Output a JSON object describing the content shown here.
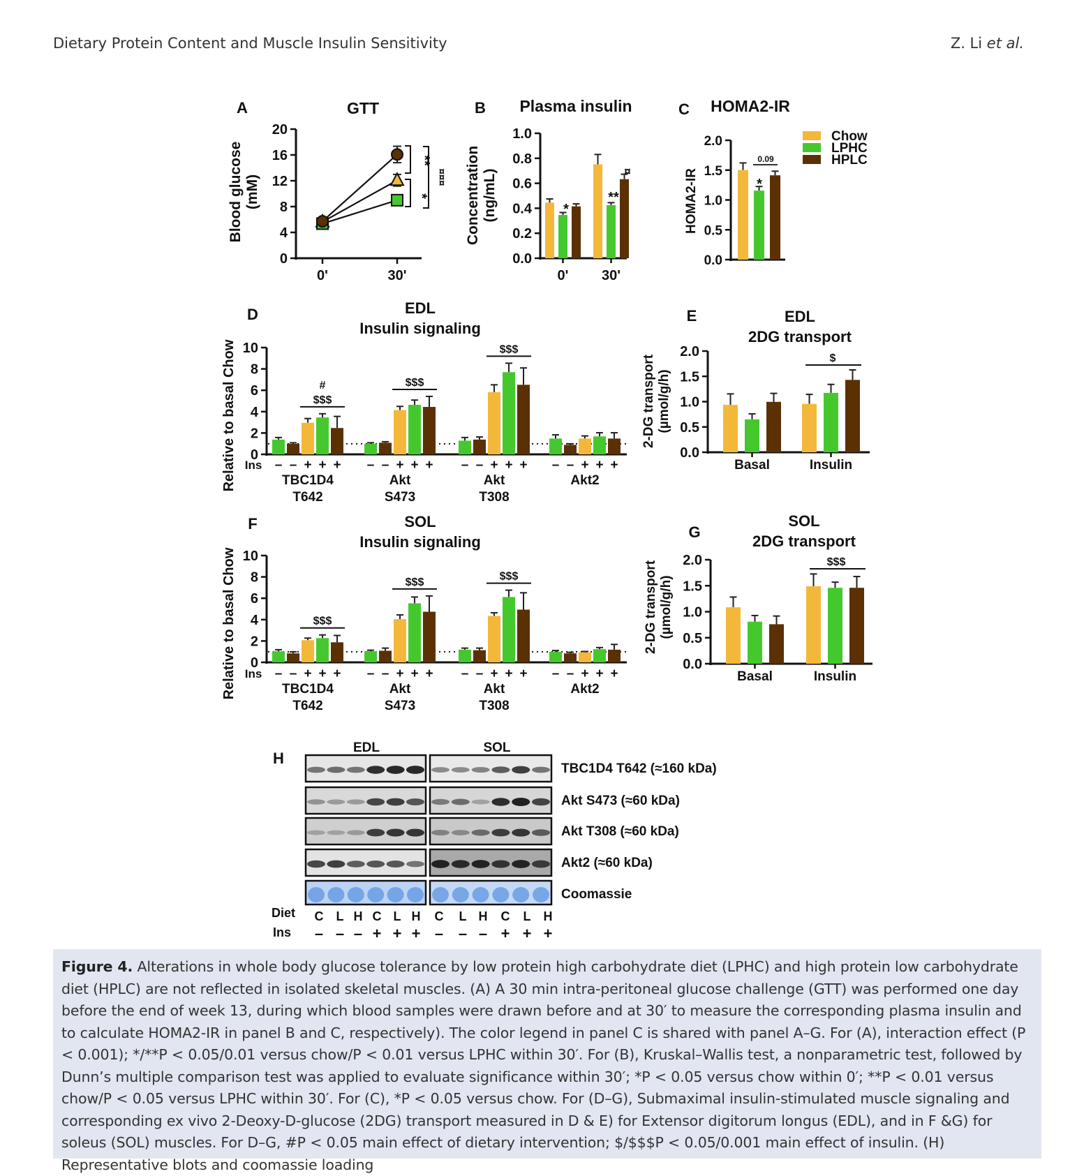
{
  "header": {
    "running_title": "Dietary Protein Content and Muscle Insulin Sensitivity",
    "author": "Z. Li",
    "author_suffix": "et al."
  },
  "colors": {
    "Chow": "#f3b83a",
    "LPHC": "#45c82e",
    "HPLC": "#5b3003",
    "axis": "#111111"
  },
  "legend": [
    "Chow",
    "LPHC",
    "HPLC"
  ],
  "chart_data": [
    {
      "panel": "A",
      "type": "line",
      "title": "GTT",
      "ylabel": "Blood glucose\n(mM)",
      "xlabel": "",
      "categories": [
        "0'",
        "30'"
      ],
      "ylim": [
        0,
        20
      ],
      "yticks": [
        0,
        4,
        8,
        12,
        16,
        20
      ],
      "series": [
        {
          "name": "Chow",
          "marker": "triangle",
          "values": [
            6.2,
            13.3
          ],
          "err": [
            0.4,
            1.0
          ]
        },
        {
          "name": "LPHC",
          "marker": "square",
          "values": [
            5.9,
            9.9
          ],
          "err": [
            0.3,
            0.6
          ]
        },
        {
          "name": "HPLC",
          "marker": "circle",
          "values": [
            6.3,
            17.7
          ],
          "err": [
            0.4,
            1.4
          ]
        }
      ],
      "annotations": [
        "**",
        "*",
        "¤¤¤"
      ]
    },
    {
      "panel": "B",
      "type": "bar",
      "title": "Plasma insulin",
      "ylabel": "Concentration\n(ng/mL)",
      "categories": [
        "0'",
        "30'"
      ],
      "ylim": [
        0,
        1.0
      ],
      "yticks": [
        0.0,
        0.2,
        0.4,
        0.6,
        0.8,
        1.0
      ],
      "series": [
        {
          "name": "Chow",
          "values": [
            0.45,
            0.76
          ],
          "err": [
            0.03,
            0.08
          ]
        },
        {
          "name": "LPHC",
          "values": [
            0.35,
            0.43
          ],
          "err": [
            0.02,
            0.02
          ]
        },
        {
          "name": "HPLC",
          "values": [
            0.42,
            0.64
          ],
          "err": [
            0.02,
            0.04
          ]
        }
      ],
      "annotations": [
        {
          "cat": 0,
          "series": "LPHC",
          "text": "*"
        },
        {
          "cat": 1,
          "series": "LPHC",
          "text": "**"
        },
        {
          "cat": 1,
          "series": "HPLC",
          "text": "¤"
        }
      ]
    },
    {
      "panel": "C",
      "type": "bar",
      "title": "HOMA2-IR",
      "ylabel": "HOMA2-IR",
      "categories": [
        ""
      ],
      "ylim": [
        0,
        2.0
      ],
      "yticks": [
        0.0,
        0.5,
        1.0,
        1.5,
        2.0
      ],
      "series": [
        {
          "name": "Chow",
          "values": [
            1.52
          ],
          "err": [
            0.12
          ]
        },
        {
          "name": "LPHC",
          "values": [
            1.17
          ],
          "err": [
            0.07
          ]
        },
        {
          "name": "HPLC",
          "values": [
            1.43
          ],
          "err": [
            0.07
          ]
        }
      ],
      "annotations": [
        {
          "series": "LPHC",
          "text": "*"
        },
        {
          "bracket": [
            "LPHC",
            "HPLC"
          ],
          "text": "0.09"
        }
      ]
    },
    {
      "panel": "D",
      "type": "bar",
      "title": "EDL\nInsulin signaling",
      "ylabel": "Relative to basal Chow",
      "ylim": [
        0,
        10
      ],
      "yticks": [
        0,
        2,
        4,
        6,
        8,
        10
      ],
      "reference_line": 1,
      "ins_row_label": "Ins",
      "groups": [
        {
          "label": [
            "TBC1D4",
            "T642"
          ],
          "bars": [
            {
              "diet": "LPHC",
              "ins": "-",
              "value": 1.4,
              "err": 0.2
            },
            {
              "diet": "HPLC",
              "ins": "-",
              "value": 1.0,
              "err": 0.1
            },
            {
              "diet": "Chow",
              "ins": "+",
              "value": 3.0,
              "err": 0.4
            },
            {
              "diet": "LPHC",
              "ins": "+",
              "value": 3.5,
              "err": 0.35
            },
            {
              "diet": "HPLC",
              "ins": "+",
              "value": 2.5,
              "err": 1.1
            }
          ],
          "sig": [
            "#",
            "$$$"
          ]
        },
        {
          "label": [
            "Akt",
            "S473"
          ],
          "bars": [
            {
              "diet": "LPHC",
              "ins": "-",
              "value": 1.0,
              "err": 0.1
            },
            {
              "diet": "HPLC",
              "ins": "-",
              "value": 1.1,
              "err": 0.1
            },
            {
              "diet": "Chow",
              "ins": "+",
              "value": 4.2,
              "err": 0.35
            },
            {
              "diet": "LPHC",
              "ins": "+",
              "value": 4.7,
              "err": 0.45
            },
            {
              "diet": "HPLC",
              "ins": "+",
              "value": 4.5,
              "err": 1.0
            }
          ],
          "sig": [
            "$$$"
          ]
        },
        {
          "label": [
            "Akt",
            "T308"
          ],
          "bars": [
            {
              "diet": "LPHC",
              "ins": "-",
              "value": 1.3,
              "err": 0.3
            },
            {
              "diet": "HPLC",
              "ins": "-",
              "value": 1.4,
              "err": 0.25
            },
            {
              "diet": "Chow",
              "ins": "+",
              "value": 5.9,
              "err": 0.7
            },
            {
              "diet": "LPHC",
              "ins": "+",
              "value": 7.8,
              "err": 0.85
            },
            {
              "diet": "HPLC",
              "ins": "+",
              "value": 6.6,
              "err": 1.6
            }
          ],
          "sig": [
            "$$$"
          ]
        },
        {
          "label": [
            "Akt2",
            ""
          ],
          "bars": [
            {
              "diet": "LPHC",
              "ins": "-",
              "value": 1.5,
              "err": 0.35
            },
            {
              "diet": "HPLC",
              "ins": "-",
              "value": 0.9,
              "err": 0.1
            },
            {
              "diet": "Chow",
              "ins": "+",
              "value": 1.5,
              "err": 0.25
            },
            {
              "diet": "LPHC",
              "ins": "+",
              "value": 1.7,
              "err": 0.35
            },
            {
              "diet": "HPLC",
              "ins": "+",
              "value": 1.5,
              "err": 0.55
            }
          ],
          "sig": []
        }
      ]
    },
    {
      "panel": "E",
      "type": "bar",
      "title": "EDL\n2DG transport",
      "ylabel": "2-DG transport\n(µmol/g/h)",
      "categories": [
        "Basal",
        "Insulin"
      ],
      "ylim": [
        0,
        2.0
      ],
      "yticks": [
        0.0,
        0.5,
        1.0,
        1.5,
        2.0
      ],
      "series": [
        {
          "name": "Chow",
          "values": [
            0.95,
            0.97
          ],
          "err": [
            0.22,
            0.19
          ]
        },
        {
          "name": "LPHC",
          "values": [
            0.66,
            1.19
          ],
          "err": [
            0.11,
            0.17
          ]
        },
        {
          "name": "HPLC",
          "values": [
            1.01,
            1.45
          ],
          "err": [
            0.17,
            0.2
          ]
        }
      ],
      "sig": [
        {
          "cat": 1,
          "text": "$"
        }
      ]
    },
    {
      "panel": "F",
      "type": "bar",
      "title": "SOL\nInsulin signaling",
      "ylabel": "Relative to basal Chow",
      "ylim": [
        0,
        10
      ],
      "yticks": [
        0,
        2,
        4,
        6,
        8,
        10
      ],
      "reference_line": 1,
      "ins_row_label": "Ins",
      "groups": [
        {
          "label": [
            "TBC1D4",
            "T642"
          ],
          "bars": [
            {
              "diet": "LPHC",
              "ins": "-",
              "value": 1.05,
              "err": 0.15
            },
            {
              "diet": "HPLC",
              "ins": "-",
              "value": 0.85,
              "err": 0.15
            },
            {
              "diet": "Chow",
              "ins": "+",
              "value": 2.1,
              "err": 0.2
            },
            {
              "diet": "LPHC",
              "ins": "+",
              "value": 2.3,
              "err": 0.3
            },
            {
              "diet": "HPLC",
              "ins": "+",
              "value": 1.9,
              "err": 0.65
            }
          ],
          "sig": [
            "$$$"
          ]
        },
        {
          "label": [
            "Akt",
            "S473"
          ],
          "bars": [
            {
              "diet": "LPHC",
              "ins": "-",
              "value": 1.05,
              "err": 0.1
            },
            {
              "diet": "HPLC",
              "ins": "-",
              "value": 1.1,
              "err": 0.25
            },
            {
              "diet": "Chow",
              "ins": "+",
              "value": 4.1,
              "err": 0.4
            },
            {
              "diet": "LPHC",
              "ins": "+",
              "value": 5.6,
              "err": 0.6
            },
            {
              "diet": "HPLC",
              "ins": "+",
              "value": 4.8,
              "err": 1.5
            }
          ],
          "sig": [
            "$$$"
          ]
        },
        {
          "label": [
            "Akt",
            "T308"
          ],
          "bars": [
            {
              "diet": "LPHC",
              "ins": "-",
              "value": 1.2,
              "err": 0.15
            },
            {
              "diet": "HPLC",
              "ins": "-",
              "value": 1.15,
              "err": 0.2
            },
            {
              "diet": "Chow",
              "ins": "+",
              "value": 4.4,
              "err": 0.3
            },
            {
              "diet": "LPHC",
              "ins": "+",
              "value": 6.2,
              "err": 0.65
            },
            {
              "diet": "HPLC",
              "ins": "+",
              "value": 5.0,
              "err": 1.6
            }
          ],
          "sig": [
            "$$$"
          ]
        },
        {
          "label": [
            "Akt2",
            ""
          ],
          "bars": [
            {
              "diet": "LPHC",
              "ins": "-",
              "value": 1.0,
              "err": 0.12
            },
            {
              "diet": "HPLC",
              "ins": "-",
              "value": 0.85,
              "err": 0.1
            },
            {
              "diet": "Chow",
              "ins": "+",
              "value": 0.95,
              "err": 0.08
            },
            {
              "diet": "LPHC",
              "ins": "+",
              "value": 1.25,
              "err": 0.15
            },
            {
              "diet": "HPLC",
              "ins": "+",
              "value": 1.2,
              "err": 0.5
            }
          ],
          "sig": []
        }
      ]
    },
    {
      "panel": "G",
      "type": "bar",
      "title": "SOL\n2DG transport",
      "ylabel": "2-DG transport\n(µmol/g/h)",
      "categories": [
        "Basal",
        "Insulin"
      ],
      "ylim": [
        0,
        2.0
      ],
      "yticks": [
        0.0,
        0.5,
        1.0,
        1.5,
        2.0
      ],
      "series": [
        {
          "name": "Chow",
          "values": [
            1.1,
            1.51
          ],
          "err": [
            0.2,
            0.24
          ]
        },
        {
          "name": "LPHC",
          "values": [
            0.82,
            1.48
          ],
          "err": [
            0.12,
            0.11
          ]
        },
        {
          "name": "HPLC",
          "values": [
            0.77,
            1.48
          ],
          "err": [
            0.16,
            0.22
          ]
        }
      ],
      "sig": [
        {
          "cat": 1,
          "text": "$$$"
        }
      ]
    }
  ],
  "blots": {
    "panel": "H",
    "tissues": [
      "EDL",
      "SOL"
    ],
    "rows": [
      {
        "label": "TBC1D4 T642 (≈160 kDa)",
        "bg": [
          "#e6e6e6",
          "#e9e9e9"
        ],
        "edl": [
          0.45,
          0.5,
          0.45,
          0.9,
          0.95,
          0.95
        ],
        "sol": [
          0.3,
          0.3,
          0.35,
          0.6,
          0.8,
          0.45
        ]
      },
      {
        "label": "Akt S473  (≈60 kDa)",
        "bg": [
          "#d9d9d9",
          "#d6d6d6"
        ],
        "edl": [
          0.25,
          0.2,
          0.2,
          0.75,
          0.8,
          0.65
        ],
        "sol": [
          0.4,
          0.5,
          0.15,
          0.9,
          0.98,
          0.75
        ]
      },
      {
        "label": "Akt T308 (≈60 kDa)",
        "bg": [
          "#cfcfcf",
          "#c9c9c9"
        ],
        "edl": [
          0.15,
          0.15,
          0.2,
          0.8,
          0.85,
          0.85
        ],
        "sol": [
          0.35,
          0.3,
          0.5,
          0.8,
          0.85,
          0.6
        ]
      },
      {
        "label": "Akt2 (≈60 kDa)",
        "bg": [
          "#e3e3e3",
          "#a9a9a9"
        ],
        "edl": [
          0.75,
          0.8,
          0.6,
          0.65,
          0.65,
          0.45
        ],
        "sol": [
          0.95,
          0.9,
          0.95,
          0.85,
          0.95,
          0.8
        ]
      },
      {
        "label": "Coomassie",
        "bg": [
          "#bcd3f5",
          "#c5d9f7"
        ],
        "edl": [
          1,
          1,
          1,
          1,
          1,
          1
        ],
        "sol": [
          1,
          1,
          1,
          1,
          1,
          1
        ],
        "coomassie": true
      }
    ],
    "diet_row_label": "Diet",
    "ins_row_label": "Ins",
    "diet_codes": [
      "C",
      "L",
      "H",
      "C",
      "L",
      "H",
      "C",
      "L",
      "H",
      "C",
      "L",
      "H"
    ],
    "ins_codes": [
      "-",
      "-",
      "-",
      "+",
      "+",
      "+",
      "-",
      "-",
      "-",
      "+",
      "+",
      "+"
    ]
  },
  "caption": {
    "label": "Figure 4.",
    "text": " Alterations in whole body glucose tolerance by low protein high carbohydrate diet (LPHC) and high protein low carbohydrate diet (HPLC) are not reflected in isolated skeletal muscles. (A) A 30 min intra-peritoneal glucose challenge (GTT) was performed one day before the end of week 13, during which blood samples were drawn before and at 30′ to measure the corresponding plasma insulin and to calculate HOMA2-IR in panel B and C, respectively). The color legend in panel C is shared with panel A–G. For (A), interaction effect (P < 0.001); */**P < 0.05/0.01 versus chow/P < 0.01 versus LPHC within 30′. For (B), Kruskal–Wallis test, a nonparametric test, followed by Dunn’s multiple comparison test was applied to evaluate significance within 30′; *P < 0.05 versus chow within 0′; **P < 0.01 versus chow/P < 0.05 versus LPHC within 30′. For (C), *P < 0.05 versus chow. For (D–G), Submaximal insulin-stimulated muscle signaling and corresponding ex vivo 2-Deoxy-D-glucose (2DG) transport measured in D & E) for Extensor digitorum longus (EDL), and in F &G) for soleus (SOL) muscles. For D–G, #P < 0.05 main effect of dietary intervention; $/$$$P < 0.05/0.001 main effect of insulin. (H) Representative blots and coomassie loading"
  }
}
